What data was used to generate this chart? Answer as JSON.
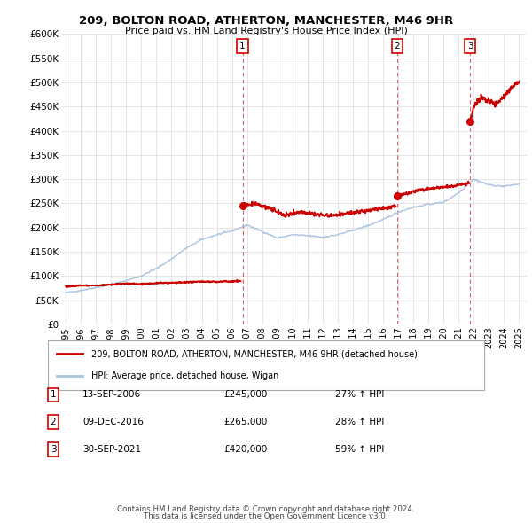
{
  "title": "209, BOLTON ROAD, ATHERTON, MANCHESTER, M46 9HR",
  "subtitle": "Price paid vs. HM Land Registry's House Price Index (HPI)",
  "ylim": [
    0,
    600000
  ],
  "yticks": [
    0,
    50000,
    100000,
    150000,
    200000,
    250000,
    300000,
    350000,
    400000,
    450000,
    500000,
    550000,
    600000
  ],
  "ytick_labels": [
    "£0",
    "£50K",
    "£100K",
    "£150K",
    "£200K",
    "£250K",
    "£300K",
    "£350K",
    "£400K",
    "£450K",
    "£500K",
    "£550K",
    "£600K"
  ],
  "hpi_color": "#aac4e0",
  "price_color": "#cc0000",
  "vline_color": "#dd4444",
  "sale_marker_color": "#cc0000",
  "transactions": [
    {
      "label": "1",
      "date": "13-SEP-2006",
      "price": 245000,
      "pct": "27%",
      "x": 2006.7
    },
    {
      "label": "2",
      "date": "09-DEC-2016",
      "price": 265000,
      "pct": "28%",
      "x": 2016.92
    },
    {
      "label": "3",
      "date": "30-SEP-2021",
      "price": 420000,
      "pct": "59%",
      "x": 2021.75
    }
  ],
  "legend_line1": "209, BOLTON ROAD, ATHERTON, MANCHESTER, M46 9HR (detached house)",
  "legend_line2": "HPI: Average price, detached house, Wigan",
  "footnote1": "Contains HM Land Registry data © Crown copyright and database right 2024.",
  "footnote2": "This data is licensed under the Open Government Licence v3.0.",
  "background_color": "#ffffff",
  "grid_color": "#e0e0e0",
  "hpi_anchor_years": [
    1995,
    1996,
    1997,
    1998,
    1999,
    2000,
    2001,
    2002,
    2003,
    2004,
    2005,
    2006,
    2007,
    2008,
    2009,
    2010,
    2011,
    2012,
    2013,
    2014,
    2015,
    2016,
    2017,
    2018,
    2019,
    2020,
    2021,
    2022,
    2023,
    2024,
    2025
  ],
  "hpi_anchor_vals": [
    65000,
    70000,
    76000,
    82000,
    90000,
    100000,
    115000,
    135000,
    158000,
    175000,
    185000,
    193000,
    205000,
    192000,
    178000,
    185000,
    183000,
    180000,
    185000,
    194000,
    204000,
    216000,
    232000,
    242000,
    248000,
    252000,
    272000,
    300000,
    288000,
    285000,
    290000
  ],
  "red_seg1_years": [
    1995,
    1996,
    1997,
    1998,
    1999,
    2000,
    2001,
    2002,
    2003,
    2004,
    2005,
    2006.6
  ],
  "red_seg1_vals": [
    78000,
    80000,
    80000,
    82000,
    84000,
    83000,
    85000,
    86000,
    87000,
    88000,
    88000,
    89000
  ],
  "red_seg2_years": [
    2006.7,
    2007.5,
    2008.5,
    2009.5,
    2010.5,
    2011.5,
    2012.5,
    2013.5,
    2014.5,
    2015.5,
    2016.5,
    2016.85
  ],
  "red_seg2_vals": [
    245000,
    250000,
    240000,
    225000,
    232000,
    228000,
    225000,
    228000,
    232000,
    238000,
    242000,
    245000
  ],
  "red_seg3_years": [
    2016.92,
    2017.5,
    2018.5,
    2019.5,
    2020.5,
    2021.5,
    2021.7
  ],
  "red_seg3_vals": [
    265000,
    270000,
    278000,
    282000,
    285000,
    290000,
    292000
  ],
  "red_seg4_years": [
    2021.75,
    2022.0,
    2022.5,
    2023.0,
    2023.5,
    2024.0,
    2024.5,
    2025.0
  ],
  "red_seg4_vals": [
    420000,
    450000,
    470000,
    460000,
    455000,
    470000,
    490000,
    500000
  ]
}
